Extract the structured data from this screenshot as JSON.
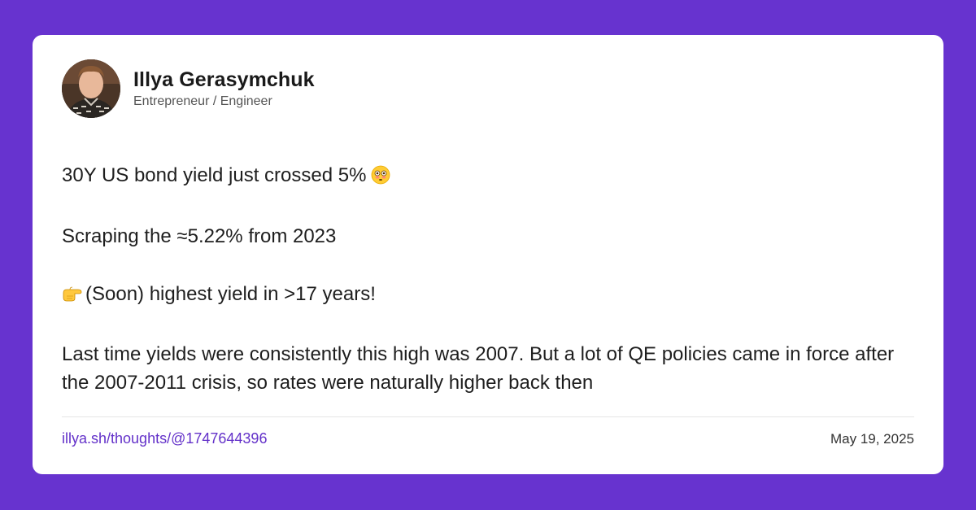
{
  "author": {
    "name": "Illya Gerasymchuk",
    "role": "Entrepreneur / Engineer",
    "avatar_icon": "profile-photo"
  },
  "post": {
    "p1": "30Y US bond yield just crossed 5%",
    "p1_emoji": "flushed-face-emoji",
    "p2": "Scraping the ≈5.22% from 2023",
    "p3_emoji": "pointing-right-hand-emoji",
    "p3": "(Soon) highest yield in >17 years!",
    "p4": "Last time yields were consistently this high was 2007. But a lot of QE policies came in force after the 2007-2011 crisis, so rates were naturally higher back then"
  },
  "footer": {
    "link": "illya.sh/thoughts/@1747644396",
    "date": "May 19, 2025"
  },
  "colors": {
    "background": "#6733cf",
    "card": "#ffffff",
    "link": "#6331c9"
  }
}
